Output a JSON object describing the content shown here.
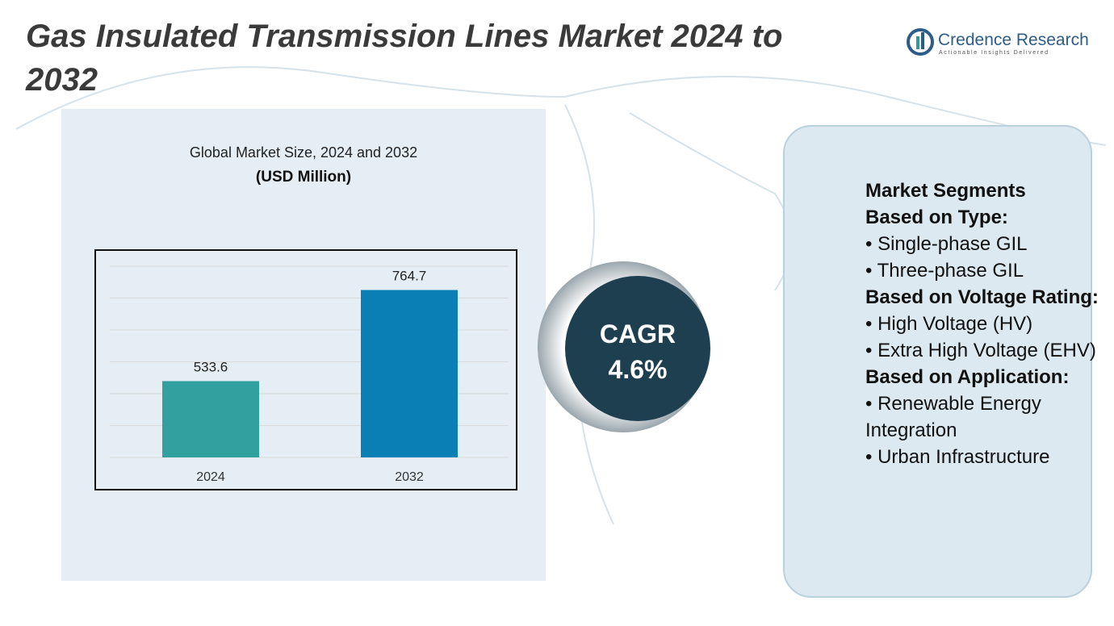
{
  "title": "Gas Insulated Transmission Lines Market 2024 to 2032",
  "logo": {
    "name": "Credence Research",
    "tagline": "Actionable Insights Delivered"
  },
  "chart_data": {
    "type": "bar",
    "title": "Global Market Size, 2024 and 2032",
    "subtitle": "(USD Million)",
    "categories": [
      "2024",
      "2032"
    ],
    "values": [
      533.6,
      764.7
    ],
    "colors": [
      "#33a0a0",
      "#0a7fb5"
    ],
    "ylim": [
      340,
      866
    ],
    "grid": true
  },
  "cagr": {
    "label": "CAGR",
    "value": "4.6%"
  },
  "segments": {
    "title": "Market Segments",
    "groups": [
      {
        "heading": "Based on Type:",
        "items": [
          "• Single-phase GIL",
          "• Three-phase GIL"
        ]
      },
      {
        "heading": "Based on Voltage Rating:",
        "items": [
          "• High Voltage (HV)",
          "• Extra High Voltage (EHV)"
        ]
      },
      {
        "heading": "Based on Application:",
        "items": [
          "• Renewable Energy Integration",
          "• Urban Infrastructure"
        ]
      }
    ]
  }
}
